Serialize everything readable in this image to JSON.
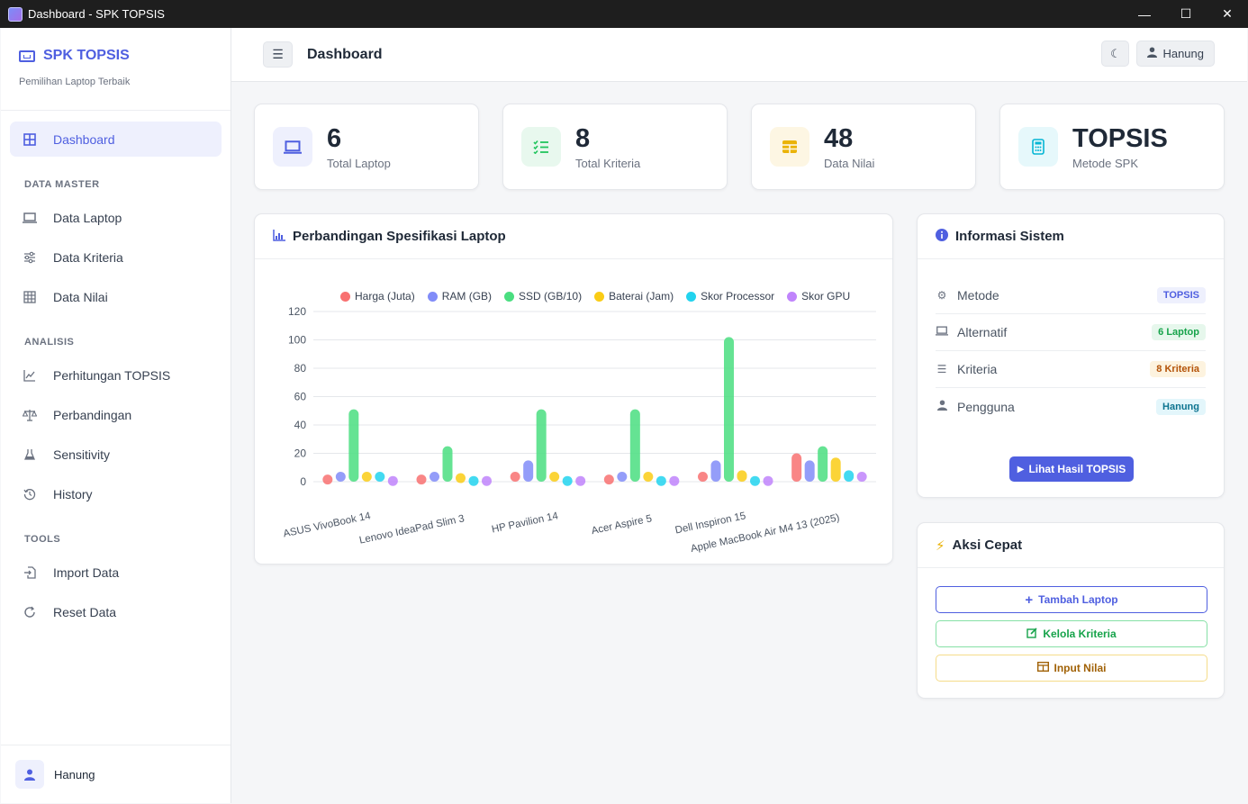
{
  "window": {
    "title": "Dashboard - SPK TOPSIS"
  },
  "sidebar": {
    "brand": "SPK TOPSIS",
    "subtitle": "Pemilihan Laptop Terbaik",
    "dashboard": "Dashboard",
    "section_master": "DATA MASTER",
    "data_laptop": "Data Laptop",
    "data_kriteria": "Data Kriteria",
    "data_nilai": "Data Nilai",
    "section_analysis": "ANALISIS",
    "perhitungan": "Perhitungan TOPSIS",
    "perbandingan": "Perbandingan",
    "sensitivity": "Sensitivity",
    "history": "History",
    "section_tools": "TOOLS",
    "import": "Import Data",
    "reset": "Reset Data",
    "user": "Hanung"
  },
  "header": {
    "title": "Dashboard",
    "user": "Hanung"
  },
  "stats": [
    {
      "value": "6",
      "label": "Total Laptop",
      "color": "#4f5fe0"
    },
    {
      "value": "8",
      "label": "Total Kriteria",
      "color": "#22c55e"
    },
    {
      "value": "48",
      "label": "Data Nilai",
      "color": "#eab308"
    },
    {
      "value": "TOPSIS",
      "label": "Metode SPK",
      "color": "#06b6d4"
    }
  ],
  "chart_card": {
    "title": "Perbandingan Spesifikasi Laptop"
  },
  "chart_data": {
    "type": "bar",
    "categories": [
      "ASUS VivoBook 14",
      "Lenovo IdeaPad Slim 3",
      "HP Pavilion 14",
      "Acer Aspire 5",
      "Dell Inspiron 15",
      "Apple MacBook Air M4 13 (2025)"
    ],
    "series": [
      {
        "name": "Harga (Juta)",
        "color": "#f87171",
        "values": [
          5,
          5,
          7,
          5,
          7,
          20
        ]
      },
      {
        "name": "RAM (GB)",
        "color": "#818cf8",
        "values": [
          7,
          7,
          15,
          7,
          15,
          15
        ]
      },
      {
        "name": "SSD (GB/10)",
        "color": "#4ade80",
        "values": [
          51,
          25,
          51,
          51,
          102,
          25
        ]
      },
      {
        "name": "Baterai (Jam)",
        "color": "#facc15",
        "values": [
          7,
          6,
          7,
          7,
          8,
          17
        ]
      },
      {
        "name": "Skor Processor",
        "color": "#22d3ee",
        "values": [
          7,
          4,
          4,
          4,
          4,
          8
        ]
      },
      {
        "name": "Skor GPU",
        "color": "#c084fc",
        "values": [
          4,
          4,
          4,
          4,
          4,
          7
        ]
      }
    ],
    "ylim": [
      0,
      120
    ],
    "yticks": [
      0,
      20,
      40,
      60,
      80,
      100,
      120
    ],
    "grid": true,
    "legend": "top"
  },
  "info": {
    "title": "Informasi Sistem",
    "rows": [
      {
        "label": "Metode",
        "value": "TOPSIS"
      },
      {
        "label": "Alternatif",
        "value": "6 Laptop"
      },
      {
        "label": "Kriteria",
        "value": "8 Kriteria"
      },
      {
        "label": "Pengguna",
        "value": "Hanung"
      }
    ],
    "button": "Lihat Hasil TOPSIS"
  },
  "actions": {
    "title": "Aksi Cepat",
    "add": "Tambah Laptop",
    "manage": "Kelola Kriteria",
    "input": "Input Nilai"
  }
}
